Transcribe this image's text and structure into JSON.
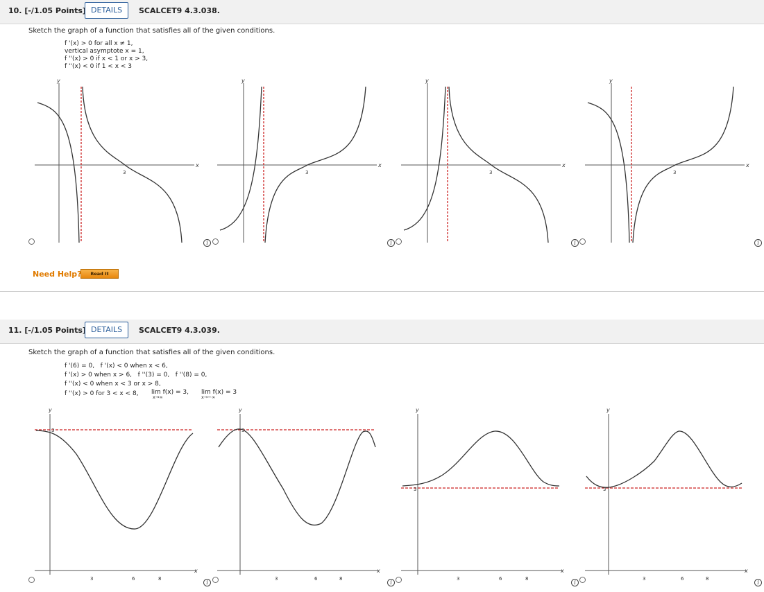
{
  "q10": {
    "number": "10. [-/1.05 Points]",
    "details_label": "DETAILS",
    "code": "SCALCET9 4.3.038.",
    "instruction": "Sketch the graph of a function that satisfies all of the given conditions.",
    "conditions": [
      "f '(x) > 0 for all x ≠ 1,",
      "vertical asymptote x = 1,",
      "f ''(x) > 0 if x < 1 or x > 3,",
      "f ''(x) < 0 if 1 < x < 3"
    ],
    "graph_axis_labels": {
      "x": "x",
      "y": "y",
      "tick": "3"
    },
    "need_help": "Need Help?",
    "read_it": "Read It"
  },
  "q11": {
    "number": "11. [-/1.05 Points]",
    "details_label": "DETAILS",
    "code": "SCALCET9 4.3.039.",
    "instruction": "Sketch the graph of a function that satisfies all of the given conditions.",
    "conditions": [
      "f '(6) = 0,   f '(x) < 0 when x < 6,",
      "f '(x) > 0 when x > 6,   f ''(3) = 0,   f ''(8) = 0,",
      "f ''(x) < 0 when x < 3 or x > 8,",
      "f ''(x) > 0 for 3 < x < 8,"
    ],
    "limit1": {
      "expr": "lim  f(x) = 3,",
      "sub": "x→∞"
    },
    "limit2": {
      "expr": "lim  f(x) = 3",
      "sub": "x→−∞"
    },
    "graph_axis_labels": {
      "x": "x",
      "y": "y",
      "tick3": "3",
      "tick6": "6",
      "tick8": "8",
      "hlabel": "3"
    }
  },
  "colors": {
    "accent": "#2a5d9a",
    "asymptote": "#cc2222",
    "curve": "#333333",
    "help": "#e07b00"
  },
  "icons": {
    "info": "info-circle-icon",
    "radio": "radio-icon"
  }
}
